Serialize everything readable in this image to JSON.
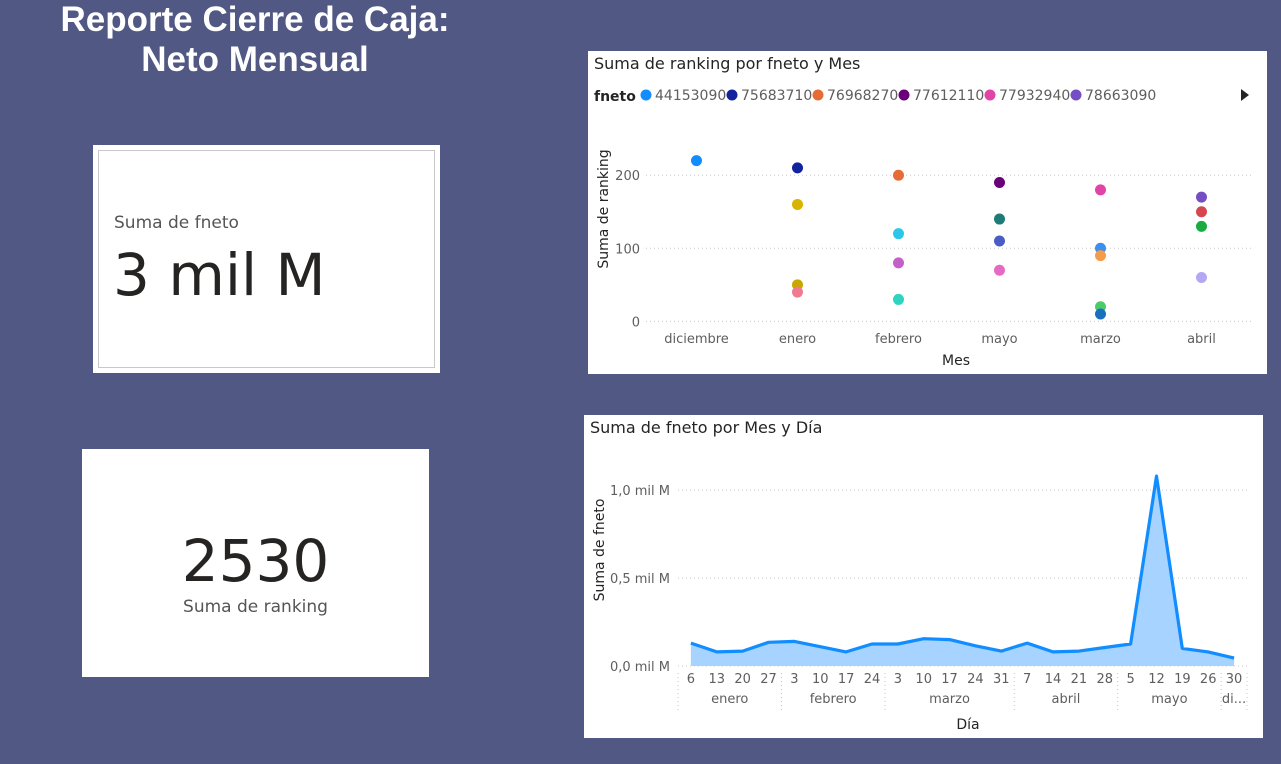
{
  "page": {
    "title_line1": "Reporte Cierre de Caja:",
    "title_line2": "Neto Mensual"
  },
  "kpi_fneto": {
    "label": "Suma de fneto",
    "value": "3 mil M"
  },
  "kpi_ranking": {
    "value": "2530",
    "label": "Suma de ranking"
  },
  "chart_data": [
    {
      "type": "scatter",
      "title": "Suma de ranking por fneto y Mes",
      "xlabel": "Mes",
      "ylabel": "Suma de ranking",
      "legend_title": "fneto",
      "legend_position": "top-left",
      "grid": true,
      "categories": [
        "diciembre",
        "enero",
        "febrero",
        "mayo",
        "marzo",
        "abril"
      ],
      "y_ticks": [
        {
          "value": 0,
          "label": "0"
        },
        {
          "value": 100,
          "label": "100"
        },
        {
          "value": 200,
          "label": "200"
        }
      ],
      "ylim": [
        -5,
        240
      ],
      "legend": [
        {
          "name": "44153090",
          "color": "#118DFF"
        },
        {
          "name": "75683710",
          "color": "#12239E"
        },
        {
          "name": "76968270",
          "color": "#E66C37"
        },
        {
          "name": "77612110",
          "color": "#6B007B"
        },
        {
          "name": "77932940",
          "color": "#E044A7"
        },
        {
          "name": "78663090",
          "color": "#744EC2"
        }
      ],
      "points": [
        {
          "x": "diciembre",
          "y": 220,
          "color": "#118DFF"
        },
        {
          "x": "enero",
          "y": 210,
          "color": "#12239E"
        },
        {
          "x": "enero",
          "y": 160,
          "color": "#D9B300"
        },
        {
          "x": "enero",
          "y": 50,
          "color": "#C7A700"
        },
        {
          "x": "enero",
          "y": 40,
          "color": "#F07A8E"
        },
        {
          "x": "febrero",
          "y": 200,
          "color": "#E66C37"
        },
        {
          "x": "febrero",
          "y": 120,
          "color": "#2CC7E8"
        },
        {
          "x": "febrero",
          "y": 80,
          "color": "#C460C9"
        },
        {
          "x": "febrero",
          "y": 30,
          "color": "#2ED4C0"
        },
        {
          "x": "mayo",
          "y": 190,
          "color": "#6B007B"
        },
        {
          "x": "mayo",
          "y": 140,
          "color": "#1E7B78"
        },
        {
          "x": "mayo",
          "y": 110,
          "color": "#4A5DC4"
        },
        {
          "x": "mayo",
          "y": 70,
          "color": "#E66AC4"
        },
        {
          "x": "marzo",
          "y": 180,
          "color": "#E044A7"
        },
        {
          "x": "marzo",
          "y": 100,
          "color": "#3A8FF0"
        },
        {
          "x": "marzo",
          "y": 90,
          "color": "#F59C4A"
        },
        {
          "x": "marzo",
          "y": 20,
          "color": "#4CCB6A"
        },
        {
          "x": "marzo",
          "y": 10,
          "color": "#1B6FBF"
        },
        {
          "x": "abril",
          "y": 170,
          "color": "#744EC2"
        },
        {
          "x": "abril",
          "y": 150,
          "color": "#D64550"
        },
        {
          "x": "abril",
          "y": 130,
          "color": "#1AAB40"
        },
        {
          "x": "abril",
          "y": 60,
          "color": "#B3A8F5"
        }
      ]
    },
    {
      "type": "area",
      "title": "Suma de fneto por Mes y Día",
      "xlabel": "Día",
      "ylabel": "Suma de fneto",
      "grid": true,
      "color": "#118DFF",
      "fill_color": "#A6D3FF",
      "y_ticks": [
        {
          "value": 0,
          "label": "0,0 mil M"
        },
        {
          "value": 0.5,
          "label": "0,5 mil M"
        },
        {
          "value": 1.0,
          "label": "1,0 mil M"
        }
      ],
      "ylim": [
        0,
        1.2
      ],
      "groups": [
        {
          "month": "enero",
          "days": [
            "6",
            "13",
            "20",
            "27"
          ]
        },
        {
          "month": "febrero",
          "days": [
            "3",
            "10",
            "17",
            "24"
          ]
        },
        {
          "month": "marzo",
          "days": [
            "3",
            "10",
            "17",
            "24",
            "31"
          ]
        },
        {
          "month": "abril",
          "days": [
            "7",
            "14",
            "21",
            "28"
          ]
        },
        {
          "month": "mayo",
          "days": [
            "5",
            "12",
            "19",
            "26"
          ]
        },
        {
          "month": "di...",
          "days": [
            "30"
          ]
        }
      ],
      "values": [
        0.13,
        0.08,
        0.085,
        0.135,
        0.14,
        0.11,
        0.08,
        0.125,
        0.125,
        0.155,
        0.15,
        0.115,
        0.085,
        0.13,
        0.08,
        0.085,
        0.105,
        0.125,
        1.08,
        0.1,
        0.08,
        0.045
      ]
    }
  ]
}
